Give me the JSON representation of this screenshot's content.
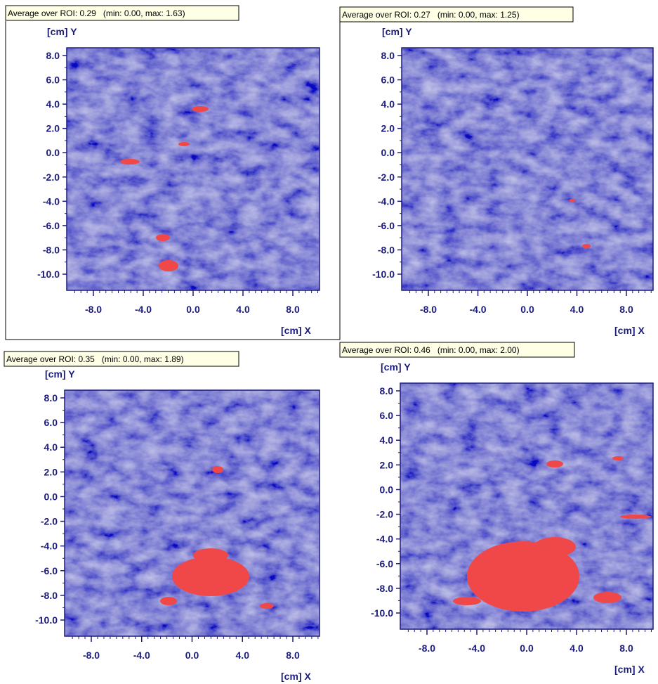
{
  "panels": [
    {
      "roi_label": "Average over ROI: 0.29   (min: 0.00, max: 1.63)"
    },
    {
      "roi_label": "Average over ROI: 0.27   (min: 0.00, max: 1.25)"
    },
    {
      "roi_label": "Average over ROI: 0.35   (min: 0.00, max: 1.89)"
    },
    {
      "roi_label": "Average over ROI: 0.46   (min: 0.00, max: 2.00)"
    }
  ],
  "axes": {
    "y_label": "[cm] Y",
    "x_label": "[cm] X",
    "yticks": [
      "8.0",
      "6.0",
      "4.0",
      "2.0",
      "0.0",
      "-2.0",
      "-4.0",
      "-6.0",
      "-8.0",
      "-10.0"
    ],
    "xticks": [
      "-8.0",
      "-4.0",
      "0.0",
      "4.0",
      "8.0"
    ]
  }
}
